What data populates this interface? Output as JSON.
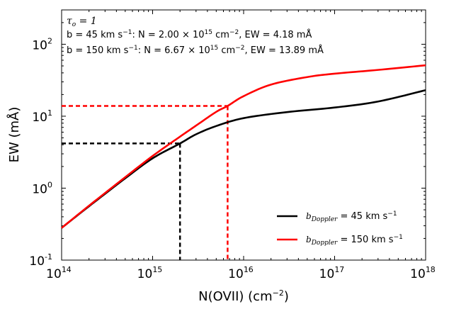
{
  "chart_data": {
    "type": "line",
    "title": "",
    "xlabel": "N(OVII) (cm",
    "xlabel_sup": "−2",
    "xlabel_close": ")",
    "ylabel": "EW (mÅ)",
    "xscale": "log",
    "yscale": "log",
    "xlim": [
      100000000000000.0,
      1e+18
    ],
    "ylim": [
      0.1,
      300
    ],
    "x_ticks": [
      {
        "base": "10",
        "exp": "14"
      },
      {
        "base": "10",
        "exp": "15"
      },
      {
        "base": "10",
        "exp": "16"
      },
      {
        "base": "10",
        "exp": "17"
      },
      {
        "base": "10",
        "exp": "18"
      }
    ],
    "y_ticks": [
      {
        "base": "10",
        "exp": "-1"
      },
      {
        "base": "10",
        "exp": "0"
      },
      {
        "base": "10",
        "exp": "1"
      },
      {
        "base": "10",
        "exp": "2"
      }
    ],
    "series": [
      {
        "name": "b_Doppler = 45 km s^-1",
        "color": "#000000",
        "b_kms": 45,
        "x": [
          100000000000000.0,
          200000000000000.0,
          500000000000000.0,
          1000000000000000.0,
          2000000000000000.0,
          3000000000000000.0,
          5000000000000000.0,
          1e+16,
          3e+16,
          1e+17,
          3e+17,
          1e+18
        ],
        "y": [
          0.28,
          0.56,
          1.37,
          2.6,
          4.18,
          5.6,
          7.3,
          9.4,
          11.4,
          13.2,
          16.0,
          23.0
        ]
      },
      {
        "name": "b_Doppler = 150 km s^-1",
        "color": "#ff0000",
        "b_kms": 150,
        "x": [
          100000000000000.0,
          200000000000000.0,
          500000000000000.0,
          1000000000000000.0,
          2000000000000000.0,
          3000000000000000.0,
          5000000000000000.0,
          6670000000000000.0,
          1e+16,
          2e+16,
          5e+16,
          1e+17,
          3e+17,
          1e+18
        ],
        "y": [
          0.28,
          0.57,
          1.42,
          2.8,
          5.2,
          7.4,
          11.5,
          13.89,
          19.0,
          27.5,
          35.0,
          39.0,
          44.0,
          51.0
        ]
      }
    ],
    "markers": [
      {
        "color": "#000000",
        "x": 2000000000000000.0,
        "y": 4.18
      },
      {
        "color": "#ff0000",
        "x": 6670000000000000.0,
        "y": 13.89
      }
    ],
    "annotations": {
      "tau": "τ",
      "tau_sub": "o",
      "tau_val": " = 1",
      "line1": {
        "b_prefix": "b =  45 km s",
        "b_sup": "−1",
        "n_part": ": N = 2.00 ",
        "times": "× 10",
        "exp": "15",
        "unit": " cm",
        "unit_sup": "−2",
        "ew": ", EW = 4.18 mÅ"
      },
      "line2": {
        "b_prefix": "b = 150 km s",
        "b_sup": "−1",
        "n_part": ": N = 6.67 ",
        "times": "× 10",
        "exp": "15",
        "unit": " cm",
        "unit_sup": "−2",
        "ew": ", EW = 13.89 mÅ"
      }
    },
    "legend": {
      "position": "lower-right",
      "entries": [
        {
          "color": "#000000",
          "sym": "b",
          "sub": "Doppler",
          "text": " = 45 km s",
          "sup": "−1"
        },
        {
          "color": "#ff0000",
          "sym": "b",
          "sub": "Doppler",
          "text": " = 150 km s",
          "sup": "−1"
        }
      ]
    },
    "grid": false
  }
}
